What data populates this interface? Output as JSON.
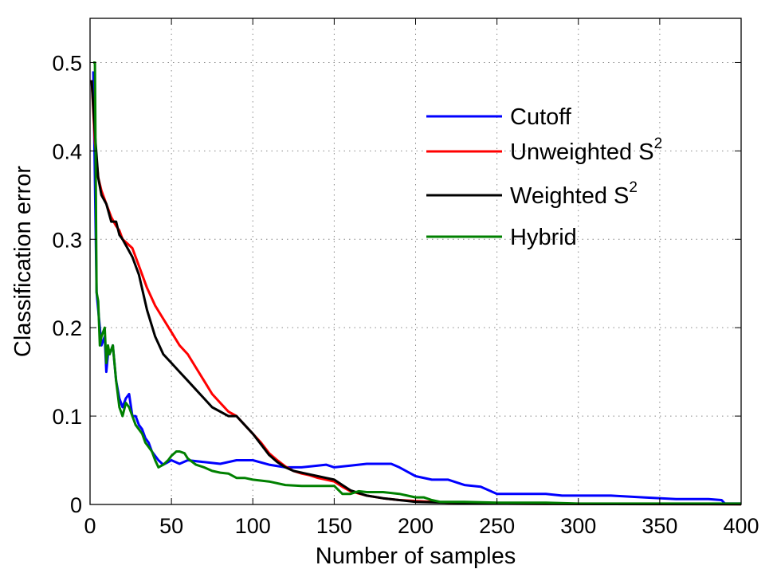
{
  "chart_data": {
    "type": "line",
    "title": "",
    "xlabel": "Number of samples",
    "ylabel": "Classification error",
    "xlim": [
      0,
      400
    ],
    "ylim": [
      0,
      0.55
    ],
    "xticks": [
      0,
      50,
      100,
      150,
      200,
      250,
      300,
      350,
      400
    ],
    "yticks": [
      0,
      0.1,
      0.2,
      0.3,
      0.4,
      0.5
    ],
    "xtick_labels": [
      "0",
      "50",
      "100",
      "150",
      "200",
      "250",
      "300",
      "350",
      "400"
    ],
    "ytick_labels": [
      "0",
      "0.1",
      "0.2",
      "0.3",
      "0.4",
      "0.5"
    ],
    "grid": true,
    "legend_position": "top-right",
    "series": [
      {
        "name": "Cutoff",
        "label_main": "Cutoff",
        "label_sup": "",
        "color": "#0000ff",
        "x": [
          2,
          4,
          6,
          7,
          9,
          10,
          11,
          12,
          14,
          16,
          18,
          20,
          22,
          24,
          26,
          28,
          30,
          32,
          34,
          36,
          38,
          40,
          42,
          45,
          48,
          50,
          55,
          60,
          70,
          80,
          90,
          100,
          110,
          120,
          130,
          140,
          145,
          150,
          160,
          170,
          180,
          185,
          190,
          200,
          210,
          220,
          230,
          240,
          250,
          260,
          270,
          280,
          290,
          300,
          320,
          340,
          360,
          380,
          388,
          390,
          400
        ],
        "y": [
          0.49,
          0.24,
          0.2,
          0.18,
          0.19,
          0.15,
          0.17,
          0.17,
          0.18,
          0.14,
          0.12,
          0.11,
          0.12,
          0.125,
          0.1,
          0.1,
          0.09,
          0.085,
          0.075,
          0.07,
          0.06,
          0.055,
          0.05,
          0.045,
          0.048,
          0.05,
          0.046,
          0.05,
          0.048,
          0.046,
          0.05,
          0.05,
          0.045,
          0.042,
          0.042,
          0.044,
          0.045,
          0.042,
          0.044,
          0.046,
          0.046,
          0.046,
          0.042,
          0.032,
          0.028,
          0.028,
          0.022,
          0.02,
          0.012,
          0.012,
          0.012,
          0.012,
          0.01,
          0.01,
          0.01,
          0.008,
          0.006,
          0.006,
          0.005,
          0.001,
          0.001
        ]
      },
      {
        "name": "Unweighted S2",
        "label_main": "Unweighted S",
        "label_sup": "2",
        "color": "#ff0000",
        "x": [
          1,
          3,
          5,
          7,
          10,
          13,
          16,
          18,
          20,
          23,
          26,
          30,
          35,
          40,
          45,
          50,
          55,
          60,
          65,
          70,
          75,
          80,
          85,
          90,
          95,
          100,
          105,
          110,
          115,
          120,
          125,
          130,
          135,
          140,
          145,
          150,
          155,
          160,
          170,
          180,
          190,
          200,
          220,
          250,
          300,
          400
        ],
        "y": [
          0.48,
          0.41,
          0.37,
          0.355,
          0.34,
          0.325,
          0.315,
          0.31,
          0.3,
          0.295,
          0.29,
          0.27,
          0.245,
          0.225,
          0.21,
          0.195,
          0.18,
          0.17,
          0.155,
          0.14,
          0.125,
          0.115,
          0.105,
          0.1,
          0.09,
          0.08,
          0.07,
          0.058,
          0.05,
          0.043,
          0.038,
          0.035,
          0.033,
          0.03,
          0.028,
          0.026,
          0.02,
          0.015,
          0.01,
          0.007,
          0.005,
          0.004,
          0.002,
          0.001,
          0.0005,
          0.0003
        ]
      },
      {
        "name": "Weighted S2",
        "label_main": "Weighted S",
        "label_sup": "2",
        "color": "#000000",
        "x": [
          1,
          3,
          5,
          7,
          10,
          13,
          16,
          18,
          20,
          23,
          26,
          30,
          35,
          40,
          45,
          50,
          55,
          60,
          65,
          70,
          75,
          80,
          85,
          90,
          95,
          100,
          105,
          110,
          115,
          120,
          125,
          130,
          135,
          140,
          145,
          150,
          155,
          160,
          170,
          180,
          190,
          200,
          220,
          250,
          300,
          400
        ],
        "y": [
          0.48,
          0.42,
          0.37,
          0.35,
          0.34,
          0.32,
          0.32,
          0.305,
          0.3,
          0.29,
          0.28,
          0.26,
          0.22,
          0.19,
          0.17,
          0.16,
          0.15,
          0.14,
          0.13,
          0.12,
          0.11,
          0.105,
          0.1,
          0.1,
          0.09,
          0.08,
          0.068,
          0.056,
          0.048,
          0.042,
          0.038,
          0.036,
          0.034,
          0.032,
          0.03,
          0.028,
          0.022,
          0.016,
          0.01,
          0.007,
          0.005,
          0.003,
          0.002,
          0.001,
          0.0005,
          0.0003
        ]
      },
      {
        "name": "Hybrid",
        "label_main": "Hybrid",
        "label_sup": "",
        "color": "#008000",
        "x": [
          2,
          3,
          4,
          5,
          6,
          7,
          9,
          10,
          11,
          12,
          14,
          16,
          18,
          20,
          22,
          24,
          26,
          28,
          30,
          32,
          34,
          36,
          38,
          40,
          42,
          45,
          48,
          50,
          53,
          55,
          58,
          60,
          65,
          70,
          75,
          80,
          85,
          90,
          95,
          100,
          110,
          120,
          130,
          140,
          150,
          155,
          160,
          165,
          170,
          180,
          190,
          200,
          205,
          210,
          215,
          230,
          250,
          280,
          300,
          350,
          400
        ],
        "y": [
          0.5,
          0.5,
          0.24,
          0.23,
          0.18,
          0.19,
          0.2,
          0.16,
          0.18,
          0.17,
          0.18,
          0.14,
          0.11,
          0.1,
          0.115,
          0.11,
          0.1,
          0.09,
          0.085,
          0.08,
          0.07,
          0.065,
          0.06,
          0.05,
          0.042,
          0.045,
          0.05,
          0.055,
          0.06,
          0.06,
          0.058,
          0.052,
          0.045,
          0.042,
          0.038,
          0.036,
          0.035,
          0.03,
          0.03,
          0.028,
          0.026,
          0.022,
          0.021,
          0.021,
          0.021,
          0.012,
          0.012,
          0.015,
          0.014,
          0.014,
          0.012,
          0.008,
          0.008,
          0.005,
          0.003,
          0.003,
          0.002,
          0.002,
          0.001,
          0.001,
          0.001
        ]
      }
    ]
  }
}
